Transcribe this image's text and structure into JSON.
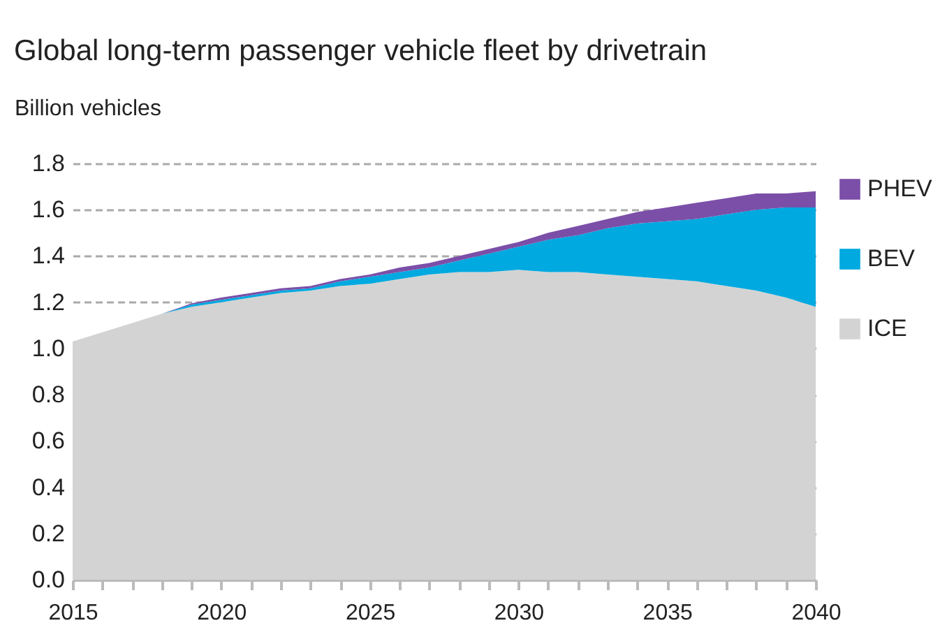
{
  "chart_data": {
    "type": "area",
    "title": "Global long-term passenger vehicle fleet by drivetrain",
    "ylabel": "Billion vehicles",
    "stacked": true,
    "x": [
      2015,
      2016,
      2017,
      2018,
      2019,
      2020,
      2021,
      2022,
      2023,
      2024,
      2025,
      2026,
      2027,
      2028,
      2029,
      2030,
      2031,
      2032,
      2033,
      2034,
      2035,
      2036,
      2037,
      2038,
      2039,
      2040
    ],
    "series": [
      {
        "name": "ICE",
        "color": "#d3d3d3",
        "values": [
          1.03,
          1.07,
          1.11,
          1.15,
          1.18,
          1.2,
          1.22,
          1.24,
          1.25,
          1.27,
          1.28,
          1.3,
          1.32,
          1.33,
          1.33,
          1.34,
          1.33,
          1.33,
          1.32,
          1.31,
          1.3,
          1.29,
          1.27,
          1.25,
          1.22,
          1.18
        ]
      },
      {
        "name": "BEV",
        "color": "#00a9e0",
        "values": [
          0,
          0,
          0,
          0,
          0.01,
          0.01,
          0.01,
          0.01,
          0.01,
          0.02,
          0.03,
          0.03,
          0.03,
          0.05,
          0.08,
          0.1,
          0.14,
          0.16,
          0.2,
          0.23,
          0.25,
          0.27,
          0.31,
          0.35,
          0.39,
          0.43
        ]
      },
      {
        "name": "PHEV",
        "color": "#7b4fa8",
        "values": [
          0,
          0,
          0,
          0,
          0.005,
          0.01,
          0.01,
          0.01,
          0.01,
          0.01,
          0.01,
          0.02,
          0.02,
          0.02,
          0.02,
          0.02,
          0.03,
          0.04,
          0.04,
          0.05,
          0.06,
          0.07,
          0.07,
          0.07,
          0.06,
          0.07
        ]
      }
    ],
    "xlim": [
      2015,
      2040
    ],
    "xticks": [
      2015,
      {
        "value": 2016,
        "label": null
      },
      {
        "value": 2017,
        "label": null
      },
      {
        "value": 2018,
        "label": null
      },
      {
        "value": 2019,
        "label": null
      },
      2020,
      {
        "value": 2021,
        "label": null
      },
      {
        "value": 2022,
        "label": null
      },
      {
        "value": 2023,
        "label": null
      },
      {
        "value": 2024,
        "label": null
      },
      2025,
      {
        "value": 2026,
        "label": null
      },
      {
        "value": 2027,
        "label": null
      },
      {
        "value": 2028,
        "label": null
      },
      {
        "value": 2029,
        "label": null
      },
      2030,
      {
        "value": 2031,
        "label": null
      },
      {
        "value": 2032,
        "label": null
      },
      {
        "value": 2033,
        "label": null
      },
      {
        "value": 2034,
        "label": null
      },
      2035,
      {
        "value": 2036,
        "label": null
      },
      {
        "value": 2037,
        "label": null
      },
      {
        "value": 2038,
        "label": null
      },
      {
        "value": 2039,
        "label": null
      },
      2040
    ],
    "ylim": [
      0,
      1.8
    ],
    "yticks": [
      {
        "value": 0,
        "label": "0.0"
      },
      {
        "value": 0.2,
        "label": "0.2"
      },
      {
        "value": 0.4,
        "label": "0.4"
      },
      {
        "value": 0.6,
        "label": "0.6"
      },
      {
        "value": 0.8,
        "label": "0.8"
      },
      {
        "value": 1,
        "label": "1.0"
      },
      {
        "value": 1.2,
        "label": "1.2"
      },
      {
        "value": 1.4,
        "label": "1.4"
      },
      {
        "value": 1.6,
        "label": "1.6"
      },
      {
        "value": 1.8,
        "label": "1.8"
      }
    ],
    "grid": "y",
    "line_style": "dashed",
    "legend": "right"
  }
}
